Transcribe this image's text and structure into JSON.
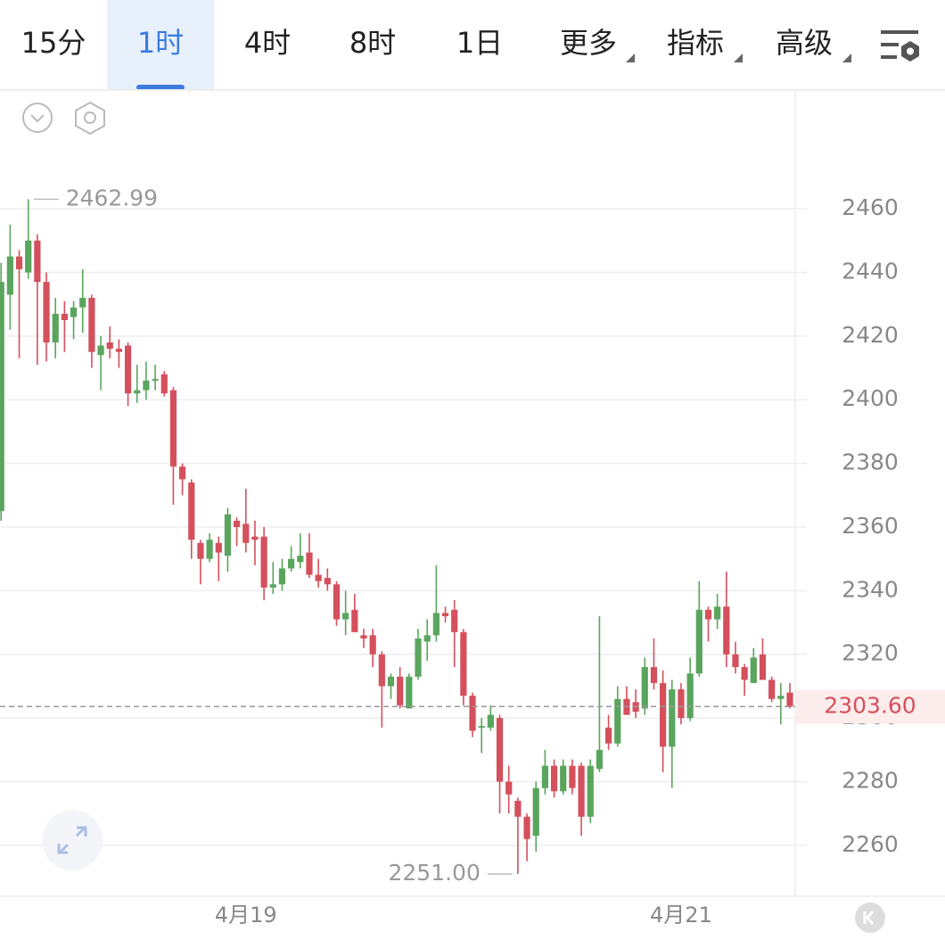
{
  "tabs": [
    "15分",
    "1时",
    "4时",
    "8时",
    "1日",
    "更多",
    "指标",
    "高级"
  ],
  "active_tab": 1,
  "chart_data": {
    "type": "candlestick",
    "categories": [
      null,
      null,
      null,
      null,
      null,
      null,
      null,
      null,
      null,
      null,
      null,
      null,
      null,
      null,
      null,
      null,
      null,
      null,
      null,
      null,
      null,
      null,
      null,
      null,
      null,
      null,
      null,
      "4月19",
      null,
      null,
      null,
      null,
      null,
      null,
      null,
      null,
      null,
      null,
      null,
      null,
      null,
      null,
      null,
      null,
      null,
      null,
      null,
      null,
      null,
      null,
      null,
      null,
      null,
      null,
      null,
      null,
      null,
      null,
      null,
      null,
      null,
      null,
      null,
      null,
      null,
      null,
      null,
      null,
      null,
      null,
      null,
      null,
      null,
      null,
      null,
      "4月21",
      null,
      null,
      null,
      null,
      null,
      null,
      null,
      null,
      null,
      null,
      null,
      null
    ],
    "series": [
      {
        "up_color": "#5aa55e",
        "down_color": "#d4505c",
        "open": [
          2365,
          2433,
          2445,
          2440,
          2450,
          2437,
          2418,
          2427,
          2426,
          2429,
          2432,
          2414,
          2418,
          2416,
          2417,
          2402,
          2403,
          2406,
          2408,
          2403,
          2379,
          2374,
          2355,
          2350,
          2355,
          2351,
          2362,
          2361,
          2357,
          2357,
          2341,
          2342,
          2347,
          2349,
          2352,
          2345,
          2344,
          2342,
          2331,
          2334,
          2326,
          2326,
          2320,
          2310,
          2313,
          2303,
          2313,
          2324,
          2326,
          2333,
          2334,
          2327,
          2307,
          2297,
          2297,
          2300,
          2280,
          2274,
          2269,
          2263,
          2278,
          2285,
          2277,
          2285,
          2285,
          2269,
          2284,
          2297,
          2292,
          2306,
          2305,
          2303,
          2316,
          2311,
          2291,
          2309,
          2300,
          2314,
          2334,
          2331,
          2335,
          2320,
          2316,
          2311,
          2320,
          2312,
          2306,
          2308
        ],
        "high": [
          2443,
          2455,
          2447,
          2462.99,
          2452,
          2440,
          2432,
          2431,
          2431,
          2441,
          2433,
          2420,
          2423,
          2419,
          2418,
          2411,
          2412,
          2411,
          2409,
          2404,
          2380,
          2375,
          2356,
          2358,
          2357,
          2366,
          2363,
          2372,
          2362,
          2360,
          2349,
          2350,
          2354,
          2358,
          2358,
          2350,
          2347,
          2343,
          2340,
          2339,
          2328,
          2328,
          2321,
          2314,
          2316,
          2314,
          2328,
          2331,
          2348,
          2335,
          2337,
          2328,
          2308,
          2300,
          2304,
          2301,
          2285,
          2275,
          2270,
          2280,
          2290,
          2287,
          2287,
          2287,
          2286,
          2287,
          2332,
          2301,
          2310,
          2310,
          2309,
          2319,
          2325,
          2315,
          2312,
          2311,
          2319,
          2343,
          2335,
          2339,
          2346,
          2324,
          2317,
          2322,
          2325,
          2313,
          2311,
          2311
        ],
        "low": [
          2362,
          2422,
          2413,
          2438,
          2411,
          2412,
          2413,
          2415,
          2419,
          2421,
          2410,
          2403,
          2413,
          2410,
          2398,
          2399,
          2400,
          2403,
          2401,
          2367,
          2370,
          2350,
          2342,
          2349,
          2343,
          2346,
          2354,
          2352,
          2348,
          2337,
          2339,
          2340,
          2346,
          2347,
          2344,
          2341,
          2340,
          2329,
          2326,
          2327,
          2322,
          2316,
          2297,
          2306,
          2303,
          2304,
          2312,
          2318,
          2324,
          2330,
          2316,
          2304,
          2294,
          2289,
          2296,
          2270,
          2270,
          2251,
          2255,
          2258,
          2276,
          2275,
          2276,
          2276,
          2263,
          2267,
          2283,
          2290,
          2291,
          2301,
          2300,
          2301,
          2309,
          2283,
          2278,
          2298,
          2299,
          2313,
          2324,
          2328,
          2316,
          2314,
          2307,
          2311,
          2312,
          2305,
          2298,
          2303
        ],
        "close": [
          2437,
          2445,
          2441,
          2450,
          2437,
          2418,
          2427,
          2425,
          2429,
          2432,
          2415,
          2417,
          2416,
          2415,
          2402,
          2403,
          2406,
          2406.5,
          2402,
          2379,
          2375,
          2356,
          2350,
          2356,
          2352,
          2364,
          2360,
          2355,
          2356,
          2341,
          2342,
          2347,
          2350,
          2351,
          2345,
          2343,
          2342,
          2331,
          2333,
          2327,
          2325,
          2320,
          2310,
          2313,
          2304,
          2313,
          2325,
          2326,
          2333,
          2332,
          2327,
          2307,
          2296,
          2297.5,
          2301,
          2280,
          2276,
          2269,
          2262,
          2278,
          2285,
          2277,
          2285,
          2278,
          2269,
          2285,
          2290,
          2292,
          2306,
          2301,
          2302,
          2316,
          2311,
          2291,
          2309,
          2300,
          2314,
          2334,
          2331,
          2335,
          2320,
          2316,
          2312,
          2319,
          2312,
          2306,
          2307,
          2303.6
        ]
      }
    ],
    "ylim": [
      2244,
      2497
    ],
    "yticks": [
      2260,
      2280,
      2300,
      2320,
      2340,
      2360,
      2380,
      2400,
      2420,
      2440,
      2460
    ],
    "grid": true,
    "annotations": [
      {
        "label": "2462.99",
        "value": 2462.99
      },
      {
        "label": "2251.00",
        "value": 2251
      }
    ],
    "last_price": {
      "label": "2303.60",
      "value": 2303.6
    }
  }
}
